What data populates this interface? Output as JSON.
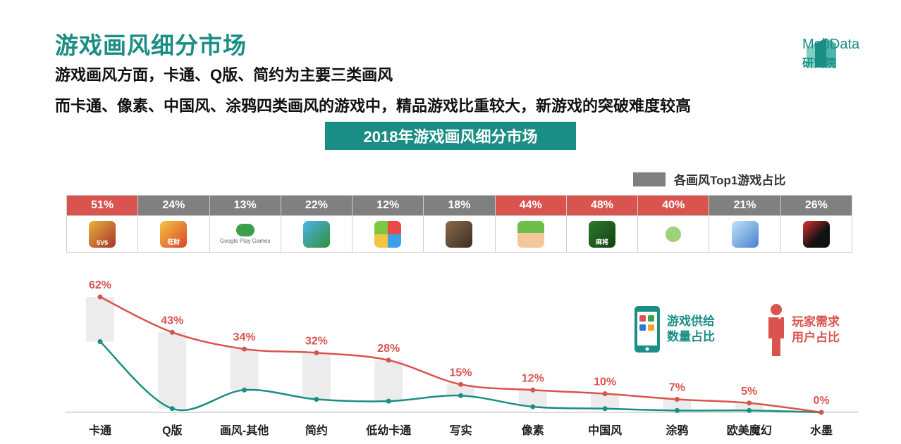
{
  "header": {
    "title": "游戏画风细分市场",
    "line1": "游戏画风方面，卡通、Q版、简约为主要三类画风",
    "line2": "而卡通、像素、中国风、涂鸦四类画风的游戏中，精品游戏比重较大，新游戏的突破难度较高",
    "banner": "2018年游戏画风细分市场"
  },
  "logo": {
    "name": "MobData",
    "sub": "研究院",
    "color": "#1a8e84"
  },
  "top1_legend": "各画风Top1游戏占比",
  "top1": [
    {
      "value": "51%",
      "highlight": true,
      "icon": "kings-glory-icon",
      "icon_label": "5V5"
    },
    {
      "value": "24%",
      "highlight": false,
      "icon": "cartoon-mahjong-icon",
      "icon_label": "旺财"
    },
    {
      "value": "13%",
      "highlight": false,
      "icon": "google-play-games-icon",
      "icon_label": "Google Play Games"
    },
    {
      "value": "22%",
      "highlight": false,
      "icon": "green-monster-icon",
      "icon_label": ""
    },
    {
      "value": "12%",
      "highlight": false,
      "icon": "candy-blocks-icon",
      "icon_label": ""
    },
    {
      "value": "18%",
      "highlight": false,
      "icon": "soldier-icon",
      "icon_label": ""
    },
    {
      "value": "44%",
      "highlight": true,
      "icon": "pixel-character-icon",
      "icon_label": ""
    },
    {
      "value": "48%",
      "highlight": true,
      "icon": "mahjong-icon",
      "icon_label": "麻将"
    },
    {
      "value": "40%",
      "highlight": true,
      "icon": "travel-frog-icon",
      "icon_label": ""
    },
    {
      "value": "21%",
      "highlight": false,
      "icon": "anime-girl-icon",
      "icon_label": ""
    },
    {
      "value": "26%",
      "highlight": false,
      "icon": "ninja-icon",
      "icon_label": ""
    }
  ],
  "colors": {
    "highlight": "#d9544f",
    "normal": "#808080",
    "demand": "#d9544f",
    "supply": "#1a8e84",
    "bar": "#ececec"
  },
  "legend": {
    "supply": "游戏供给数量占比",
    "supply_l1": "游戏供给",
    "supply_l2": "数量占比",
    "demand_l1": "玩家需求",
    "demand_l2": "用户占比"
  },
  "chart_data": {
    "type": "line",
    "categories": [
      "卡通",
      "Q版",
      "画风-其他",
      "简约",
      "低幼卡通",
      "写实",
      "像素",
      "中国风",
      "涂鸦",
      "欧美魔幻",
      "水墨"
    ],
    "series": [
      {
        "name": "玩家需求用户占比",
        "values": [
          62,
          43,
          34,
          32,
          28,
          15,
          12,
          10,
          7,
          5,
          0
        ],
        "labels": [
          "62%",
          "43%",
          "34%",
          "32%",
          "28%",
          "15%",
          "12%",
          "10%",
          "7%",
          "5%",
          "0%"
        ]
      },
      {
        "name": "游戏供给数量占比",
        "values": [
          38,
          2,
          12,
          7,
          6,
          9,
          3,
          2,
          1,
          1,
          0
        ]
      }
    ],
    "ylim": [
      0,
      65
    ]
  }
}
